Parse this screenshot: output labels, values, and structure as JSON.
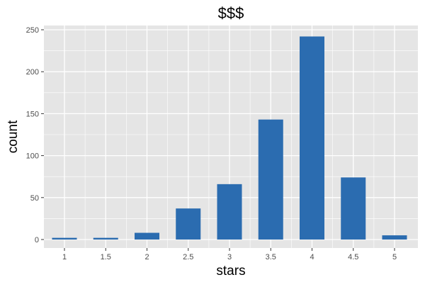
{
  "chart_data": {
    "type": "bar",
    "title": "$$$",
    "xlabel": "stars",
    "ylabel": "count",
    "categories": [
      "1",
      "1.5",
      "2",
      "2.5",
      "3",
      "3.5",
      "4",
      "4.5",
      "5"
    ],
    "values": [
      2,
      2,
      8,
      37,
      66,
      143,
      242,
      74,
      5
    ],
    "ylim": [
      0,
      254
    ],
    "yticks": [
      0,
      50,
      100,
      150,
      200,
      250
    ],
    "grid": true,
    "legend": "none",
    "bar_color": "#2b6cb0",
    "panel_color": "#e5e5e5",
    "grid_color": "#ffffff"
  }
}
